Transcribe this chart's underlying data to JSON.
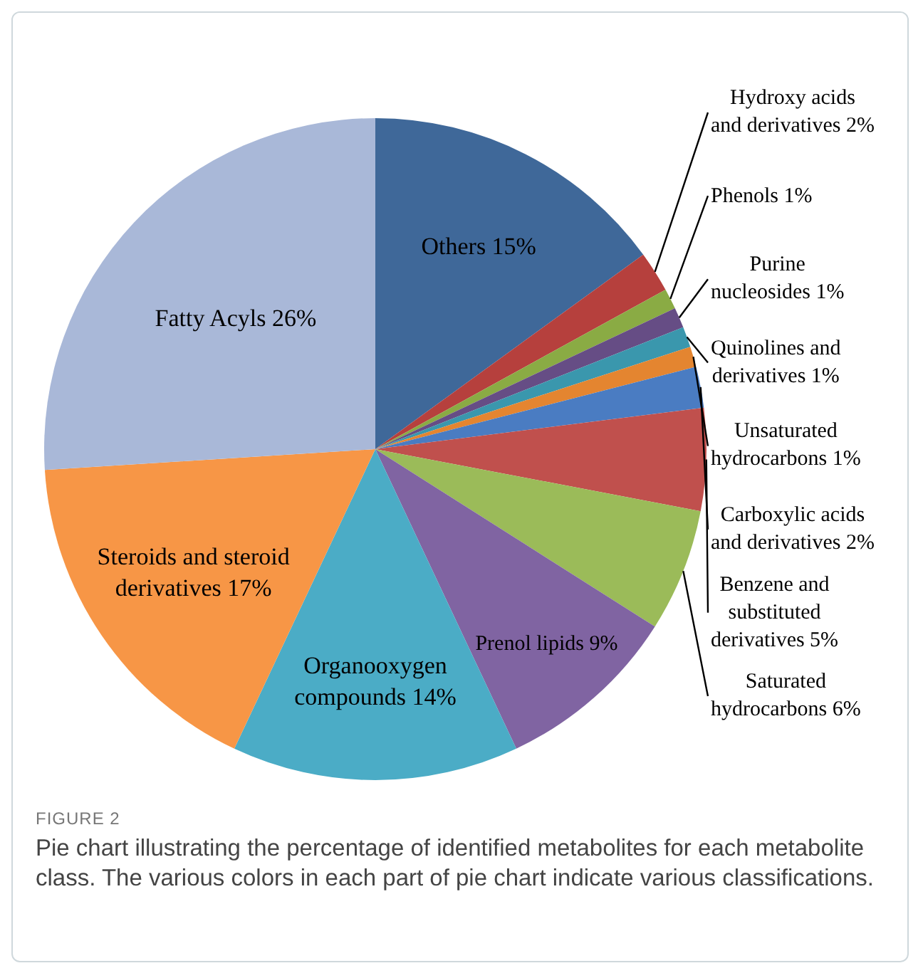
{
  "chart_data": {
    "type": "pie",
    "categories": [
      "Others",
      "Hydroxy acids and derivatives",
      "Phenols",
      "Purine nucleosides",
      "Quinolines and derivatives",
      "Unsaturated hydrocarbons",
      "Carboxylic acids and derivatives",
      "Benzene and substituted derivatives",
      "Saturated hydrocarbons",
      "Prenol lipids",
      "Organooxygen compounds",
      "Steroids and steroid derivatives",
      "Fatty Acyls"
    ],
    "values": [
      15,
      2,
      1,
      1,
      1,
      1,
      2,
      5,
      6,
      9,
      14,
      17,
      26
    ],
    "value_labels": [
      "15%",
      "2%",
      "1%",
      "1%",
      "1%",
      "1%",
      "2%",
      "5%",
      "6%",
      "9%",
      "14%",
      "17%",
      "26%"
    ],
    "colors": [
      "#3f6899",
      "#b6403d",
      "#8aab44",
      "#664d85",
      "#3a97ad",
      "#e48530",
      "#4a7cc2",
      "#c0504d",
      "#9bbb59",
      "#8064a2",
      "#4bacc6",
      "#f79646",
      "#a9b8d8"
    ],
    "annotations": [
      "FIGURE 2",
      "Pie chart illustrating the percentage of identified metabolites for each metabolite class. The various colors in each part of pie chart indicate various classifications."
    ]
  }
}
